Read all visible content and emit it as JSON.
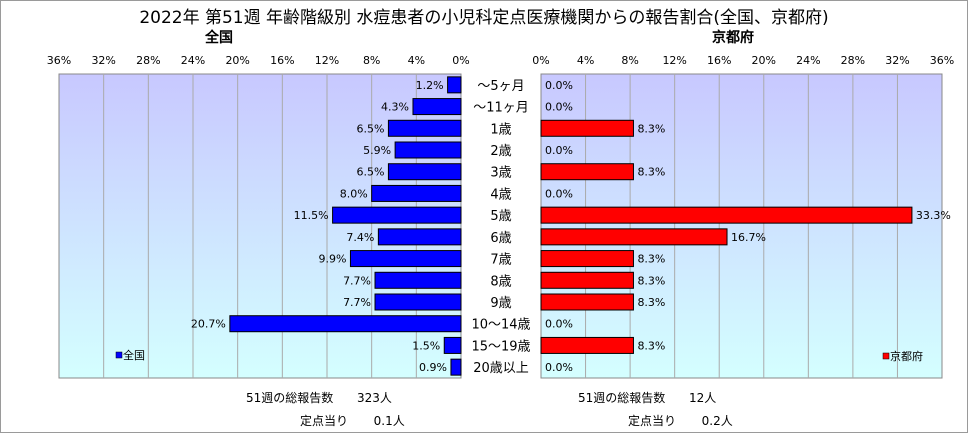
{
  "title": "2022年 第51週 年齢階級別 水痘患者の小児科定点医療機関からの報告割合(全国、京都府)",
  "chart_data": {
    "type": "bar",
    "orientation": "horizontal",
    "categories": [
      "～5ヶ月",
      "～11ヶ月",
      "1歳",
      "2歳",
      "3歳",
      "4歳",
      "5歳",
      "6歳",
      "7歳",
      "8歳",
      "9歳",
      "10～14歳",
      "15～19歳",
      "20歳以上"
    ],
    "xlim": [
      0,
      36
    ],
    "ticks": [
      "0%",
      "4%",
      "8%",
      "12%",
      "16%",
      "20%",
      "24%",
      "28%",
      "32%",
      "36%"
    ],
    "tick_values": [
      0,
      4,
      8,
      12,
      16,
      20,
      24,
      28,
      32,
      36
    ],
    "series": [
      {
        "name": "全国",
        "panel_title": "全国",
        "direction": "left",
        "color": "#0000ff",
        "values": [
          1.2,
          4.3,
          6.5,
          5.9,
          6.5,
          8.0,
          11.5,
          7.4,
          9.9,
          7.7,
          7.7,
          20.7,
          1.5,
          0.9
        ],
        "labels": [
          "1.2%",
          "4.3%",
          "6.5%",
          "5.9%",
          "6.5%",
          "8.0%",
          "11.5%",
          "7.4%",
          "9.9%",
          "7.7%",
          "7.7%",
          "20.7%",
          "1.5%",
          "0.9%"
        ]
      },
      {
        "name": "京都府",
        "panel_title": "京都府",
        "direction": "right",
        "color": "#ff0000",
        "values": [
          0.0,
          0.0,
          8.3,
          0.0,
          8.3,
          0.0,
          33.3,
          16.7,
          8.3,
          8.3,
          8.3,
          0.0,
          8.3,
          0.0
        ],
        "labels": [
          "0.0%",
          "0.0%",
          "8.3%",
          "0.0%",
          "8.3%",
          "0.0%",
          "33.3%",
          "16.7%",
          "8.3%",
          "8.3%",
          "8.3%",
          "0.0%",
          "8.3%",
          "0.0%"
        ]
      }
    ],
    "grid": true,
    "legend": "bottom-left of each panel"
  },
  "footer": {
    "national": {
      "report_label": "51週の総報告数",
      "report_value": "323人",
      "per_label": "定点当り",
      "per_value": "0.1人"
    },
    "kyoto": {
      "report_label": "51週の総報告数",
      "report_value": "12人",
      "per_label": "定点当り",
      "per_value": "0.2人"
    }
  },
  "colors": {
    "bar_national": "#0000ff",
    "bar_kyoto": "#ff0000",
    "plot_bg_top": "#c8c8ff",
    "plot_bg_bottom": "#d4ffff",
    "grid": "#aaaaaa"
  }
}
